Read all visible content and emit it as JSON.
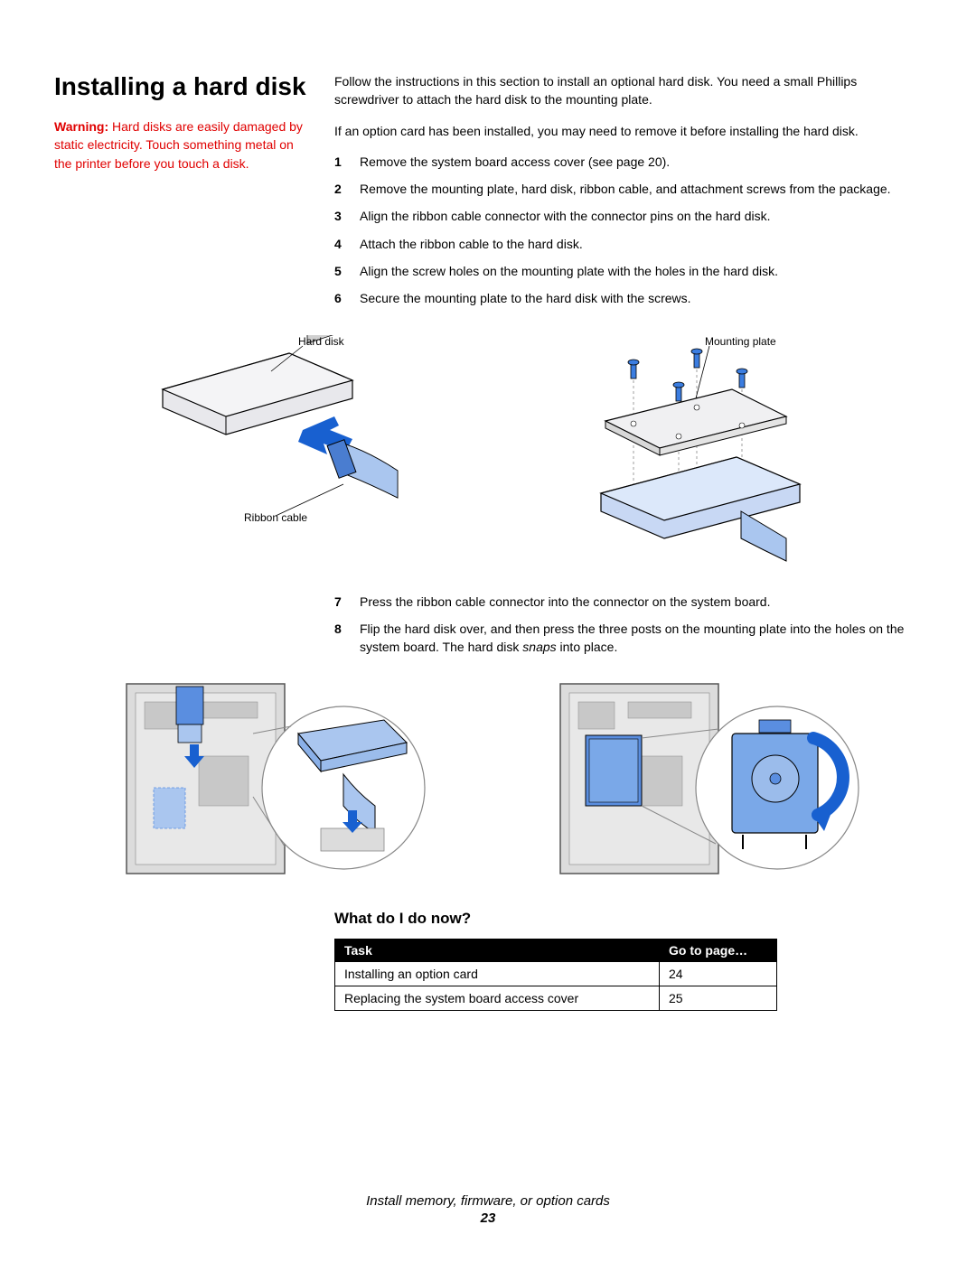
{
  "heading": "Installing a hard disk",
  "warning": {
    "label": "Warning:",
    "text": " Hard disks are easily damaged by static electricity. Touch something metal on the printer before you touch a disk.",
    "color": "#e00000"
  },
  "intro": [
    "Follow the instructions in this section to install an optional hard disk. You need a small Phillips screwdriver to attach the hard disk to the mounting plate.",
    "If an option card has been installed, you may need to remove it before installing the hard disk."
  ],
  "steps_a": [
    "Remove the system board access cover (see page 20).",
    "Remove the mounting plate, hard disk, ribbon cable, and attachment screws from the package.",
    "Align the ribbon cable connector with the connector pins on the hard disk.",
    "Attach the ribbon cable to the hard disk.",
    "Align the screw holes on the mounting plate with the holes in the hard disk.",
    "Secure the mounting plate to the hard disk with the screws."
  ],
  "fig1": {
    "labels": {
      "hard_disk": "Hard disk",
      "ribbon_cable": "Ribbon cable",
      "mounting_plate": "Mounting plate"
    },
    "colors": {
      "outline": "#000000",
      "disk_fill": "#e8e8ec",
      "cable_fill": "#7aa8e8",
      "cable_dark": "#4a7dd0",
      "arrow_fill": "#1860d0",
      "screw_fill": "#3b7de0",
      "plate_fill": "#f0f0f2",
      "bottom_fill": "#c8d8f4",
      "dash": "#888888"
    }
  },
  "steps_b_start": 7,
  "steps_b": [
    "Press the ribbon cable connector into the connector on the system board.",
    "Flip the hard disk over, and then press the three posts on the mounting plate into the holes on the system board. The hard disk <i>snaps</i> into place."
  ],
  "fig2": {
    "colors": {
      "board_outline": "#555555",
      "board_fill": "#dcdcdc",
      "board_dark": "#b8b8b8",
      "accent": "#5a8ee0",
      "accent_light": "#aac6ef",
      "circle_stroke": "#888888",
      "circle_fill": "#ffffff",
      "arrow": "#1860d0"
    }
  },
  "subheading": "What do I do now?",
  "table": {
    "headers": [
      "Task",
      "Go to page…"
    ],
    "rows": [
      [
        "Installing an option card",
        "24"
      ],
      [
        "Replacing the system board access cover",
        "25"
      ]
    ],
    "header_bg": "#000000",
    "header_fg": "#ffffff"
  },
  "footer": {
    "title": "Install memory, firmware, or option cards",
    "page": "23"
  }
}
